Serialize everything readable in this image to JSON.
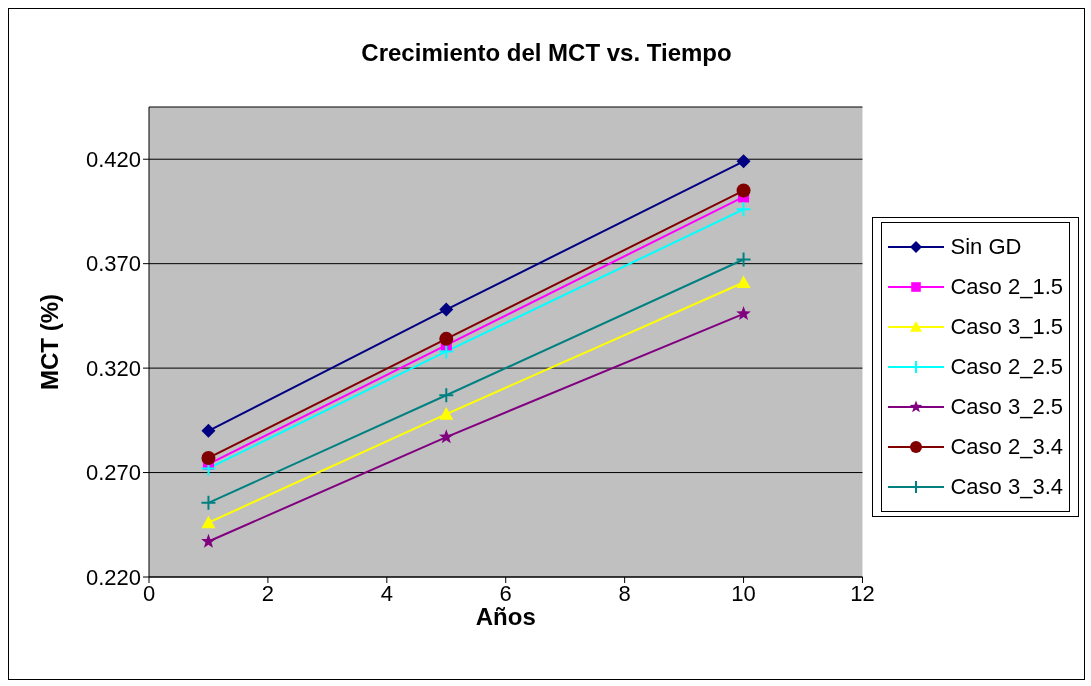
{
  "chart_data": {
    "type": "line",
    "title": "Crecimiento del MCT vs. Tiempo",
    "xlabel": "Años",
    "ylabel": "MCT (%)",
    "x": [
      1,
      5,
      10
    ],
    "xlim": [
      0,
      12
    ],
    "xticks": [
      0,
      2,
      4,
      6,
      8,
      10,
      12
    ],
    "ylim": [
      0.22,
      0.445
    ],
    "yticks": [
      {
        "value": 0.22,
        "label": "0.220"
      },
      {
        "value": 0.27,
        "label": "0.270"
      },
      {
        "value": 0.32,
        "label": "0.320"
      },
      {
        "value": 0.37,
        "label": "0.370"
      },
      {
        "value": 0.42,
        "label": "0.420"
      }
    ],
    "grid": "y",
    "legend": "right",
    "series": [
      {
        "name": "Sin GD",
        "color": "#000080",
        "marker": "diamond",
        "values": [
          0.29,
          0.348,
          0.419
        ]
      },
      {
        "name": "Caso 2_1.5",
        "color": "#ff00ff",
        "marker": "square",
        "values": [
          0.274,
          0.331,
          0.402
        ]
      },
      {
        "name": "Caso 3_1.5",
        "color": "#ffff00",
        "marker": "triangle",
        "values": [
          0.246,
          0.298,
          0.361
        ]
      },
      {
        "name": "Caso 2_2.5",
        "color": "#00ffff",
        "marker": "cross",
        "values": [
          0.272,
          0.328,
          0.396
        ]
      },
      {
        "name": "Caso 3_2.5",
        "color": "#800080",
        "marker": "star",
        "values": [
          0.237,
          0.287,
          0.346
        ]
      },
      {
        "name": "Caso 2_3.4",
        "color": "#800000",
        "marker": "circle",
        "values": [
          0.277,
          0.334,
          0.405
        ]
      },
      {
        "name": "Caso 3_3.4",
        "color": "#008080",
        "marker": "cross",
        "values": [
          0.2555,
          0.307,
          0.372
        ]
      }
    ]
  }
}
